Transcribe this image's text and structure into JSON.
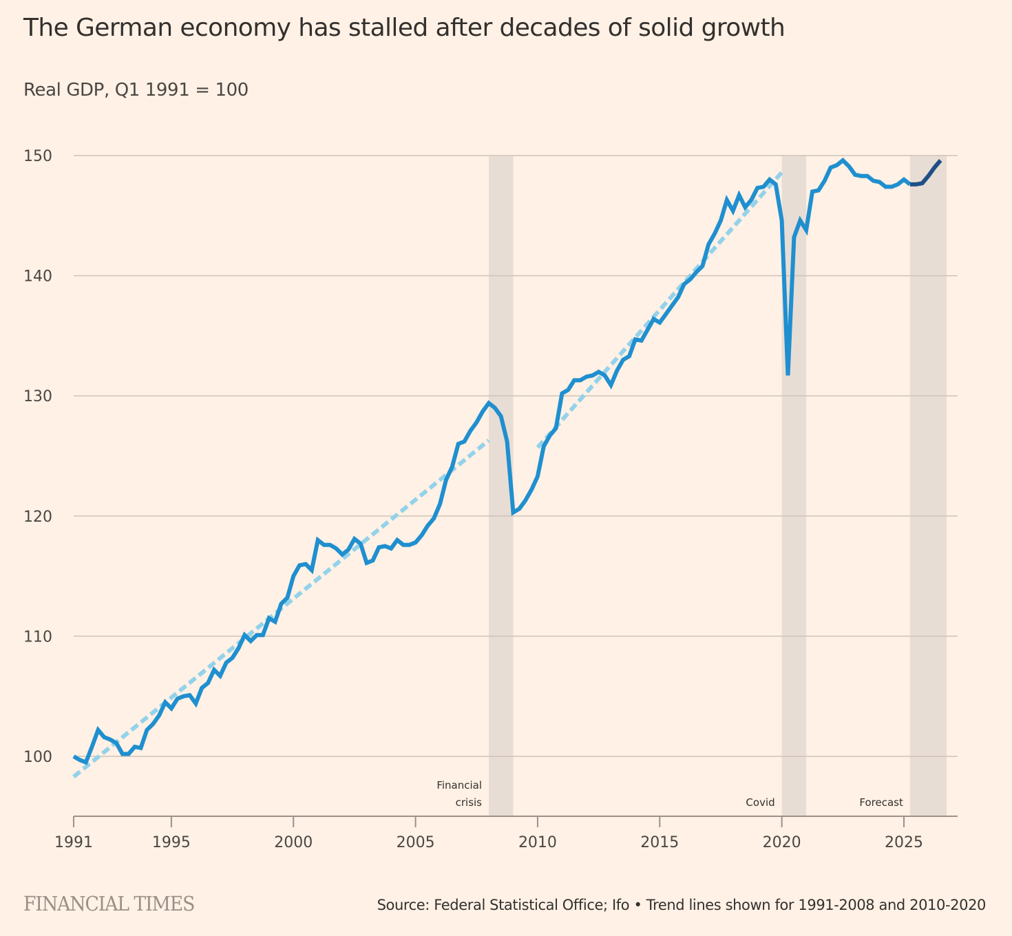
{
  "header": {
    "title": "The German economy has stalled after decades of solid growth",
    "subtitle": "Real GDP, Q1 1991 = 100"
  },
  "footer": {
    "brand": "FINANCIAL TIMES",
    "source": "Source: Federal Statistical Office; Ifo • Trend lines shown for 1991-2008 and 2010-2020"
  },
  "colors": {
    "background": "#fff1e5",
    "actual_line": "#1f8fcf",
    "forecast_line": "#1f4f86",
    "trend_line": "#93d2ea",
    "band": "#e8ddd5",
    "grid": "#cfc2b7",
    "axis": "#9b918a"
  },
  "chart_data": {
    "type": "line",
    "title": "The German economy has stalled after decades of solid growth",
    "subtitle": "Real GDP, Q1 1991 = 100",
    "xlabel": "",
    "ylabel": "",
    "xlim": [
      1991,
      2026.75
    ],
    "ylim": [
      95,
      150
    ],
    "yticks": [
      100,
      110,
      120,
      130,
      140,
      150
    ],
    "xticks": [
      1991,
      1995,
      2000,
      2005,
      2010,
      2015,
      2020,
      2025
    ],
    "grid": "horizontal",
    "legend": "none",
    "series": [
      {
        "name": "Real GDP (actual)",
        "style": "solid",
        "start": 1991,
        "frequency": "quarterly",
        "values": [
          100.0,
          99.7,
          99.5,
          100.8,
          102.2,
          101.6,
          101.4,
          101.1,
          100.2,
          100.2,
          100.8,
          100.7,
          102.2,
          102.7,
          103.4,
          104.5,
          104.0,
          104.8,
          105.0,
          105.1,
          104.4,
          105.7,
          106.1,
          107.2,
          106.7,
          107.8,
          108.2,
          109.0,
          110.1,
          109.6,
          110.1,
          110.1,
          111.5,
          111.2,
          112.7,
          113.2,
          115.0,
          115.9,
          116.0,
          115.5,
          118.0,
          117.6,
          117.6,
          117.3,
          116.8,
          117.2,
          118.1,
          117.7,
          116.1,
          116.3,
          117.4,
          117.5,
          117.3,
          118.0,
          117.6,
          117.6,
          117.8,
          118.4,
          119.2,
          119.8,
          121.0,
          123.0,
          124.1,
          126.0,
          126.2,
          127.1,
          127.8,
          128.7,
          129.4,
          129.0,
          128.3,
          126.2,
          120.3,
          120.6,
          121.3,
          122.2,
          123.3,
          125.8,
          126.7,
          127.3,
          130.2,
          130.5,
          131.3,
          131.3,
          131.6,
          131.7,
          132.0,
          131.7,
          130.9,
          132.1,
          133.0,
          133.3,
          134.7,
          134.6,
          135.5,
          136.4,
          136.1,
          136.8,
          137.5,
          138.2,
          139.3,
          139.7,
          140.3,
          140.8,
          142.6,
          143.5,
          144.6,
          146.3,
          145.4,
          146.7,
          145.7,
          146.3,
          147.3,
          147.4,
          148.0,
          147.6,
          144.6,
          131.7,
          143.2,
          144.6,
          143.8,
          147.0,
          147.1,
          147.9,
          149.0,
          149.2,
          149.6,
          149.1,
          148.4,
          148.3,
          148.3,
          147.9,
          147.8,
          147.4,
          147.4,
          147.6,
          148.0,
          147.6
        ]
      },
      {
        "name": "Forecast (Ifo)",
        "style": "solid-dark",
        "start": 2025.25,
        "frequency": "quarterly",
        "values": [
          147.6,
          147.6,
          147.7,
          148.3,
          149.0,
          149.6
        ]
      },
      {
        "name": "Trend 1991-2008",
        "style": "dashed",
        "points": [
          [
            1991.0,
            98.3
          ],
          [
            2008.0,
            126.3
          ]
        ]
      },
      {
        "name": "Trend 2010-2020",
        "style": "dashed",
        "points": [
          [
            2010.0,
            125.7
          ],
          [
            2020.0,
            148.6
          ]
        ]
      }
    ],
    "shaded_bands": [
      {
        "label": "Financial crisis",
        "label_lines": [
          "Financial",
          "crisis"
        ],
        "from": 2008.0,
        "to": 2009.0
      },
      {
        "label": "Covid",
        "label_lines": [
          "Covid"
        ],
        "from": 2020.0,
        "to": 2021.0
      },
      {
        "label": "Forecast",
        "label_lines": [
          "Forecast"
        ],
        "from": 2025.25,
        "to": 2026.75
      }
    ]
  }
}
